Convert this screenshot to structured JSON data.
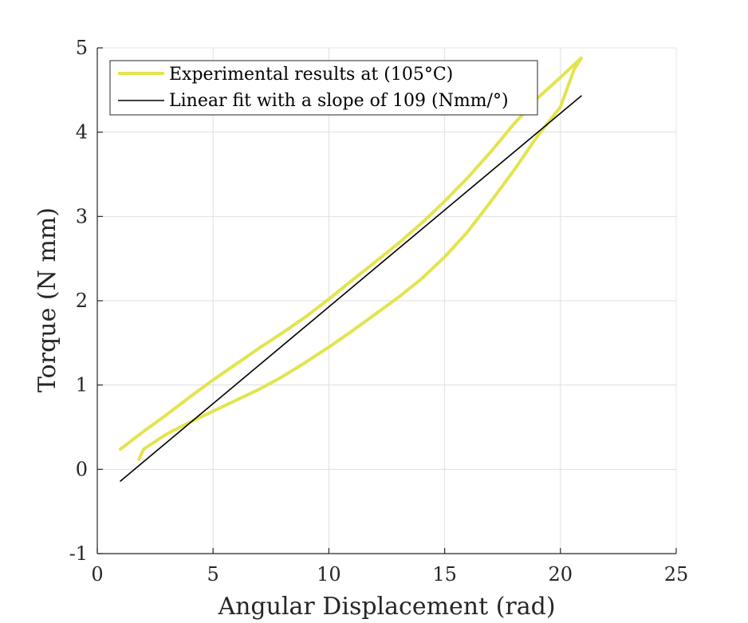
{
  "chart_data": {
    "type": "line",
    "xlabel": "Angular Displacement (rad)",
    "ylabel": "Torque (N mm)",
    "xlim": [
      0,
      25
    ],
    "ylim": [
      -1,
      5
    ],
    "xticks": [
      0,
      5,
      10,
      15,
      20,
      25
    ],
    "yticks": [
      -1,
      0,
      1,
      2,
      3,
      4,
      5
    ],
    "xtick_labels": [
      "0",
      "5",
      "10",
      "15",
      "20",
      "25"
    ],
    "ytick_labels": [
      "-1",
      "0",
      "1",
      "2",
      "3",
      "4",
      "5"
    ],
    "grid": true,
    "box": true,
    "legend_position": "top-left",
    "series": [
      {
        "name": "Experimental results at (105°C)",
        "color": "#e3e44d",
        "points": [
          [
            1.0,
            0.24
          ],
          [
            2.0,
            0.45
          ],
          [
            3.0,
            0.65
          ],
          [
            4.0,
            0.86
          ],
          [
            5.0,
            1.06
          ],
          [
            6.0,
            1.25
          ],
          [
            7.0,
            1.44
          ],
          [
            8.0,
            1.62
          ],
          [
            9.0,
            1.81
          ],
          [
            10.0,
            2.02
          ],
          [
            11.0,
            2.24
          ],
          [
            12.0,
            2.46
          ],
          [
            13.0,
            2.68
          ],
          [
            14.0,
            2.92
          ],
          [
            15.0,
            3.18
          ],
          [
            16.0,
            3.46
          ],
          [
            17.0,
            3.77
          ],
          [
            18.0,
            4.1
          ],
          [
            19.0,
            4.4
          ],
          [
            20.0,
            4.65
          ],
          [
            20.9,
            4.88
          ],
          [
            20.6,
            4.75
          ],
          [
            20.0,
            4.3
          ],
          [
            19.0,
            3.95
          ],
          [
            18.0,
            3.55
          ],
          [
            17.0,
            3.18
          ],
          [
            16.0,
            2.82
          ],
          [
            15.0,
            2.52
          ],
          [
            14.0,
            2.26
          ],
          [
            13.0,
            2.04
          ],
          [
            12.0,
            1.84
          ],
          [
            11.0,
            1.64
          ],
          [
            10.0,
            1.45
          ],
          [
            9.0,
            1.27
          ],
          [
            8.0,
            1.1
          ],
          [
            7.0,
            0.95
          ],
          [
            6.0,
            0.82
          ],
          [
            5.0,
            0.69
          ],
          [
            4.0,
            0.56
          ],
          [
            3.0,
            0.42
          ],
          [
            2.0,
            0.24
          ],
          [
            1.8,
            0.12
          ]
        ]
      },
      {
        "name": "Linear fit with a slope of 109 (Nmm/°)",
        "color": "#000000",
        "points": [
          [
            1.0,
            -0.14
          ],
          [
            20.9,
            4.43
          ]
        ]
      }
    ]
  }
}
